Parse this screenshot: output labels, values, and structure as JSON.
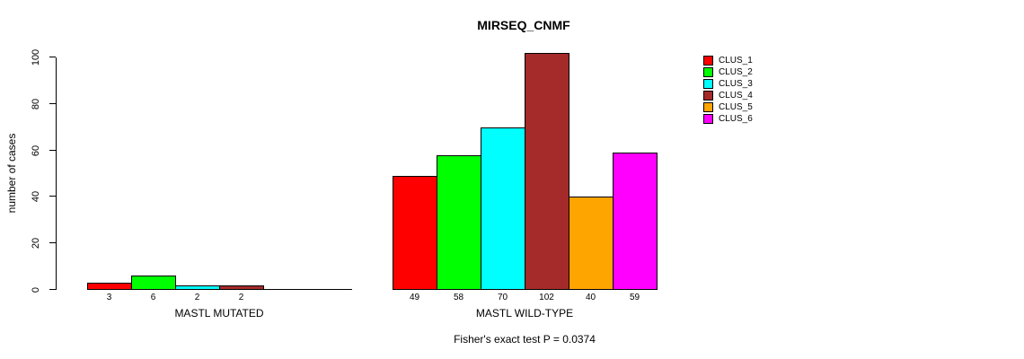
{
  "chart_data": {
    "type": "bar",
    "title": "MIRSEQ_CNMF",
    "ylabel": "number of cases",
    "xlabel": "",
    "footnote": "Fisher's exact test P = 0.0374",
    "ylim": [
      0,
      100
    ],
    "yticks": [
      0,
      20,
      40,
      60,
      80,
      100
    ],
    "grid": false,
    "legend_position": "right",
    "categories": [
      "MASTL MUTATED",
      "MASTL WILD-TYPE"
    ],
    "groups": [
      "MASTL MUTATED",
      "MASTL WILD-TYPE"
    ],
    "series": [
      {
        "name": "CLUS_1",
        "color": "#ff0000",
        "values": [
          3,
          49
        ]
      },
      {
        "name": "CLUS_2",
        "color": "#00ff00",
        "values": [
          6,
          58
        ]
      },
      {
        "name": "CLUS_3",
        "color": "#00ffff",
        "values": [
          2,
          70
        ]
      },
      {
        "name": "CLUS_4",
        "color": "#a52a2a",
        "values": [
          2,
          102
        ]
      },
      {
        "name": "CLUS_5",
        "color": "#ffa500",
        "values": [
          0,
          40
        ]
      },
      {
        "name": "CLUS_6",
        "color": "#ff00ff",
        "values": [
          0,
          59
        ]
      }
    ],
    "bar_value_labels_shown_when_zero": false
  }
}
